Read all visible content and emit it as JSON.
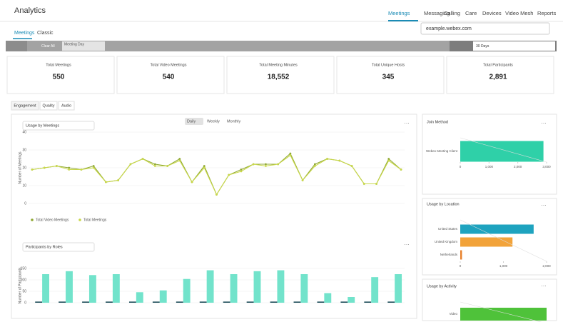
{
  "header": {
    "title": "Analytics",
    "nav": [
      "Meetings",
      "Messaging",
      "Calling",
      "Care",
      "Devices",
      "Video Mesh",
      "Reports"
    ],
    "subtabs": [
      "Meetings",
      "Classic"
    ],
    "site": "example.webex.com"
  },
  "filters": {
    "clear": "Clear All",
    "chip": "Meeting Day",
    "range": "30 Days"
  },
  "kpis": [
    {
      "label": "Total Meetings",
      "value": "550"
    },
    {
      "label": "Total Video Meetings",
      "value": "540"
    },
    {
      "label": "Total Meeting Minutes",
      "value": "18,552"
    },
    {
      "label": "Total Unique Hosts",
      "value": "345"
    },
    {
      "label": "Total Participants",
      "value": "2,891"
    }
  ],
  "tabs": [
    "Engagement",
    "Quality",
    "Audio"
  ],
  "usage_chart": {
    "type": "line",
    "dropdown": "Usage by Meetings",
    "toggles": [
      "Daily",
      "Weekly",
      "Monthly"
    ],
    "y_label": "Number of Meetings",
    "ylim": [
      0,
      40
    ],
    "yticks": [
      0,
      10,
      20,
      30,
      40
    ],
    "series": [
      {
        "name": "Total Video Meetings",
        "color": "#8fa832",
        "values": [
          19,
          20,
          21,
          20,
          19,
          21,
          12,
          13,
          22,
          25,
          22,
          21,
          25,
          12,
          21,
          5,
          16,
          19,
          22,
          22,
          22,
          28,
          13,
          22,
          25,
          24,
          21,
          11,
          11,
          25,
          19
        ]
      },
      {
        "name": "Total Meetings",
        "color": "#c9d84a",
        "values": [
          19,
          20,
          21,
          19,
          19,
          20,
          12,
          13,
          22,
          25,
          21,
          21,
          24,
          12,
          20,
          5,
          16,
          18,
          22,
          21,
          22,
          27,
          13,
          21,
          25,
          24,
          21,
          11,
          11,
          24,
          19
        ]
      }
    ]
  },
  "roles_chart": {
    "type": "bar",
    "dropdown": "Participants by Roles",
    "y_label": "Number of Participants",
    "ylim": [
      0,
      150
    ],
    "yticks": [
      0,
      50,
      100,
      150
    ],
    "series": [
      {
        "color": "#1f4e5a",
        "values": [
          5,
          5,
          5,
          5,
          5,
          5,
          5,
          5,
          5,
          5,
          5,
          5,
          5,
          5,
          5,
          5
        ]
      },
      {
        "color": "#72e3cb",
        "values": [
          125,
          138,
          121,
          125,
          46,
          54,
          104,
          142,
          125,
          138,
          142,
          125,
          42,
          25,
          112,
          125
        ]
      }
    ]
  },
  "join_method": {
    "type": "hbar",
    "title": "Join Method",
    "categories": [
      "Webex Meeting Client"
    ],
    "values": [
      2891
    ],
    "color": "#2fd0a8",
    "xlim": [
      0,
      3000
    ],
    "xticks": [
      0,
      {
        "value": 1000,
        "label": "1,000"
      },
      {
        "value": 2000,
        "label": "2,000"
      },
      {
        "value": 3000,
        "label": "3,000"
      }
    ]
  },
  "location": {
    "type": "hbar",
    "title": "Usage by Location",
    "categories": [
      "United States",
      "United Kingdom",
      "Netherlands"
    ],
    "values": [
      1700,
      1210,
      40
    ],
    "colors": [
      "#1ea3bf",
      "#f2a33a",
      "#e8812b"
    ],
    "xlim": [
      0,
      2000
    ],
    "xticks": [
      0,
      {
        "value": 1000,
        "label": "1,000"
      },
      {
        "value": 2000,
        "label": "2,000"
      }
    ]
  },
  "activity": {
    "type": "hbar",
    "title": "Usage by Activity",
    "categories": [
      "Video"
    ],
    "values": [
      540
    ],
    "color": "#4fc23a",
    "xlim": [
      0,
      540
    ],
    "xticks": []
  }
}
